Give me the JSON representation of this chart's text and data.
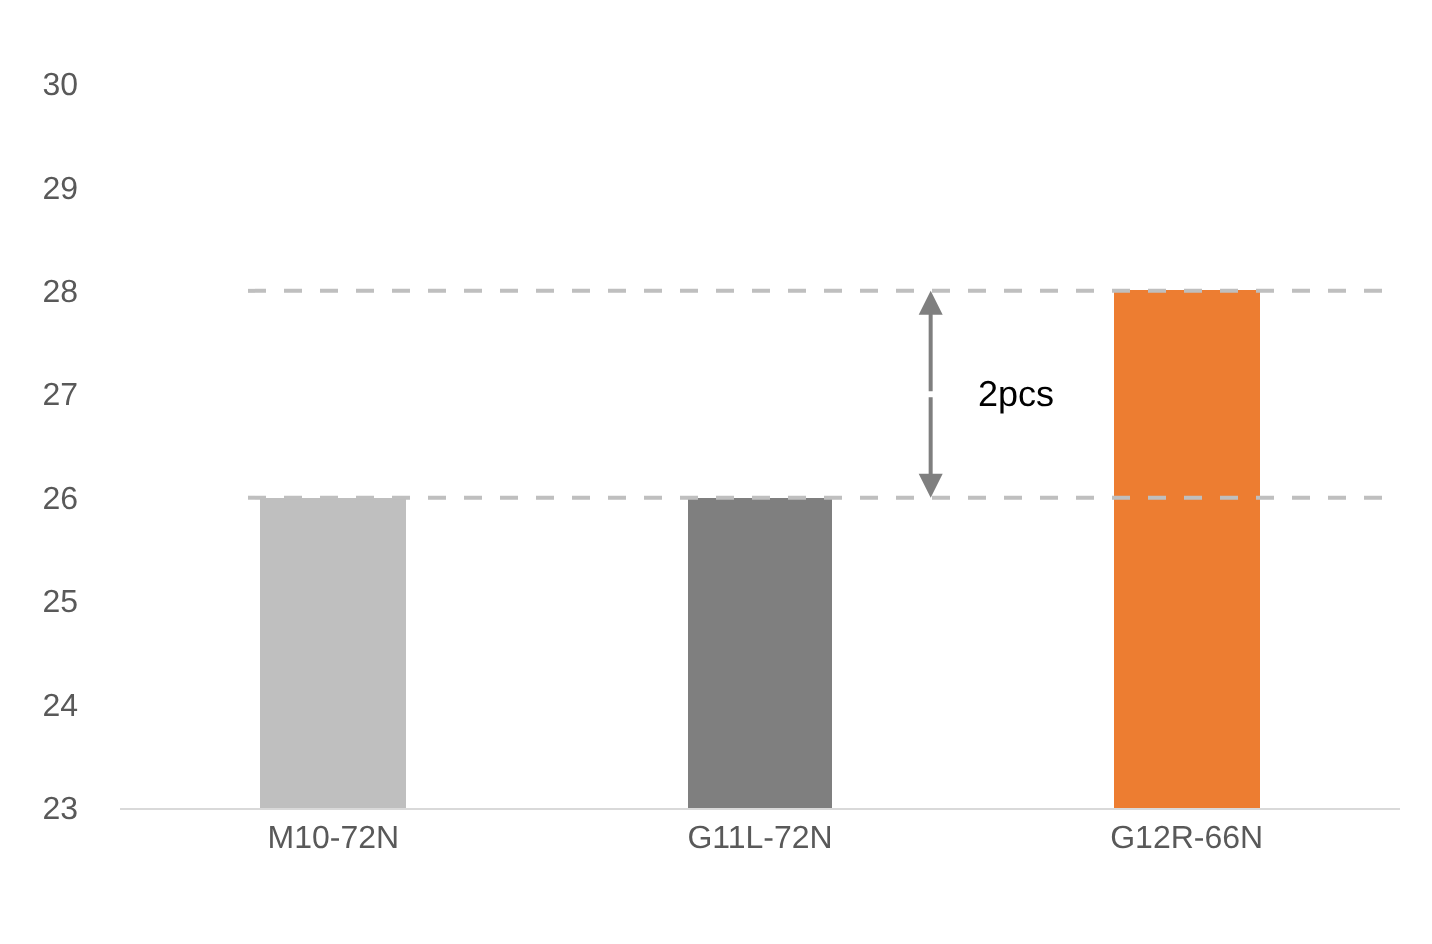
{
  "chart_data": {
    "type": "bar",
    "categories": [
      "M10-72N",
      "G11L-72N",
      "G12R-66N"
    ],
    "values": [
      26,
      26,
      28
    ],
    "colors": [
      "#bfbfbf",
      "#7f7f7f",
      "#ed7d31"
    ],
    "ylim": [
      23,
      30
    ],
    "yticks": [
      23,
      24,
      25,
      26,
      27,
      28,
      29,
      30
    ],
    "ref_lines": [
      {
        "axis": "y",
        "value": 26,
        "color": "#bfbfbf",
        "line_style": "dashed"
      },
      {
        "axis": "y",
        "value": 28,
        "color": "#bfbfbf",
        "line_style": "dashed"
      }
    ],
    "annotations": [
      "2pcs"
    ]
  }
}
